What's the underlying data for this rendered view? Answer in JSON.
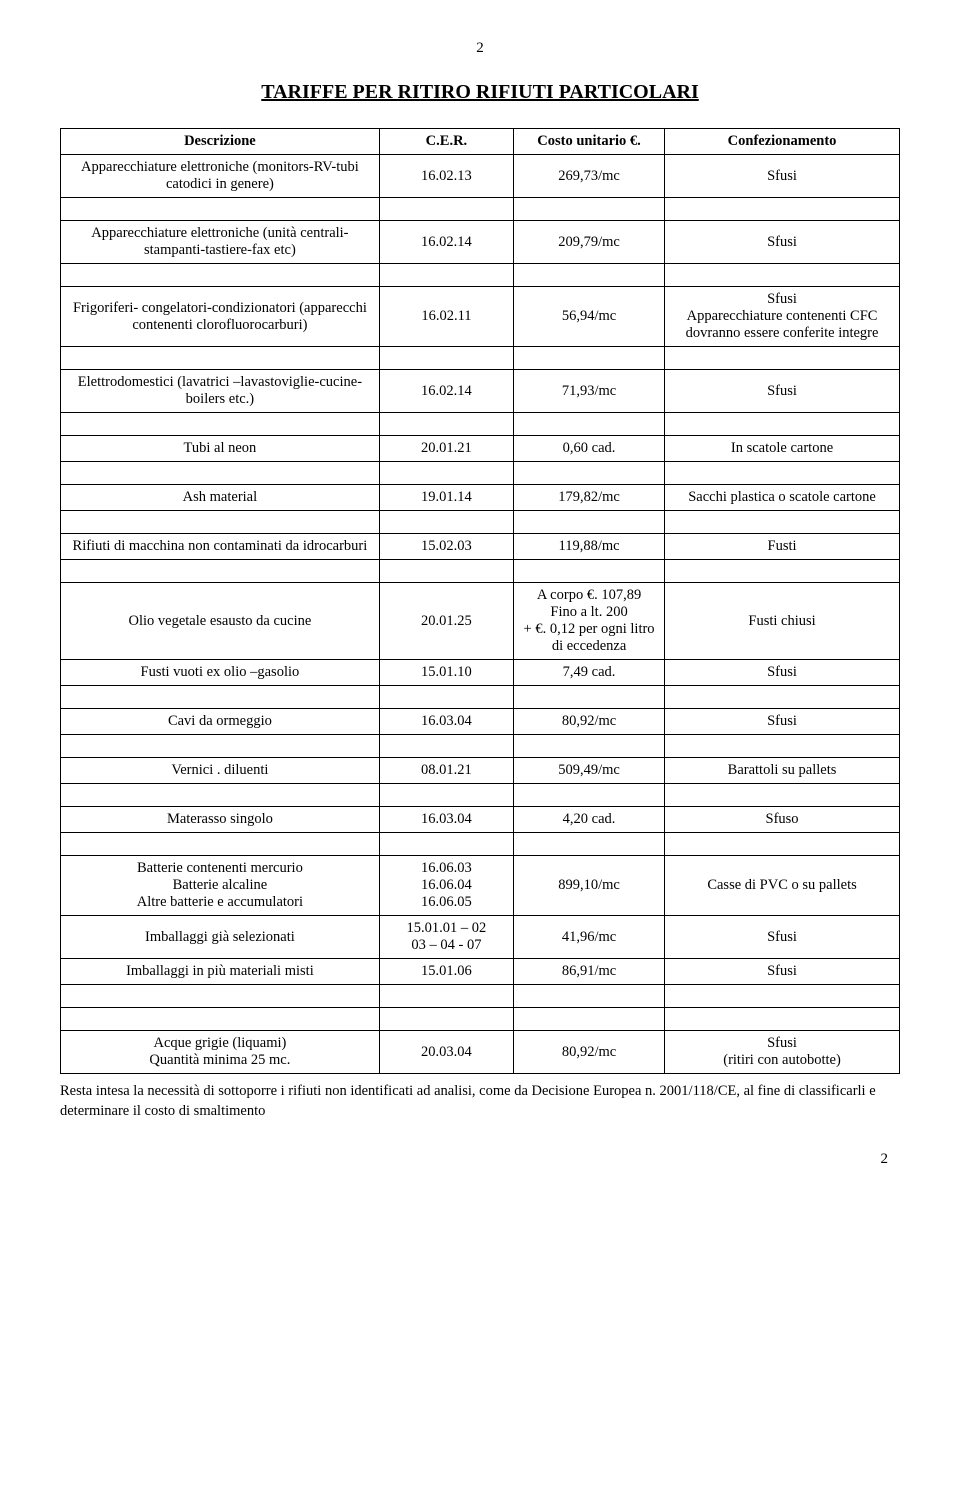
{
  "page": {
    "num_top": "2",
    "num_bottom": "2",
    "title": "TARIFFE PER RITIRO RIFIUTI PARTICOLARI"
  },
  "headers": {
    "desc": "Descrizione",
    "cer": "C.E.R.",
    "cost": "Costo unitario €.",
    "conf": "Confezionamento"
  },
  "rows": {
    "r1": {
      "desc": "Apparecchiature elettroniche (monitors-RV-tubi catodici in genere)",
      "cer": "16.02.13",
      "cost": "269,73/mc",
      "conf": "Sfusi"
    },
    "r2": {
      "desc": "Apparecchiature elettroniche (unità centrali-stampanti-tastiere-fax etc)",
      "cer": "16.02.14",
      "cost": "209,79/mc",
      "conf": "Sfusi"
    },
    "r3": {
      "desc": "Frigoriferi- congelatori-condizionatori (apparecchi contenenti clorofluorocarburi)",
      "cer": "16.02.11",
      "cost": "56,94/mc",
      "conf": "Sfusi\nApparecchiature contenenti CFC dovranno essere conferite integre"
    },
    "r4": {
      "desc": "Elettrodomestici (lavatrici –lavastoviglie-cucine-boilers etc.)",
      "cer": "16.02.14",
      "cost": "71,93/mc",
      "conf": "Sfusi"
    },
    "r5": {
      "desc": "Tubi al neon",
      "cer": "20.01.21",
      "cost": "0,60 cad.",
      "conf": "In scatole cartone"
    },
    "r6": {
      "desc": "Ash material",
      "cer": "19.01.14",
      "cost": "179,82/mc",
      "conf": "Sacchi plastica o scatole cartone"
    },
    "r7": {
      "desc": "Rifiuti di macchina non contaminati da idrocarburi",
      "cer": "15.02.03",
      "cost": "119,88/mc",
      "conf": "Fusti"
    },
    "r8": {
      "desc": "Olio vegetale esausto da cucine",
      "cer": "20.01.25",
      "cost": "A corpo €. 107,89\nFino a lt. 200\n+ €. 0,12 per ogni litro di eccedenza",
      "conf": "Fusti chiusi"
    },
    "r9": {
      "desc": "Fusti vuoti ex olio –gasolio",
      "cer": "15.01.10",
      "cost": "7,49 cad.",
      "conf": "Sfusi"
    },
    "r10": {
      "desc": "Cavi da ormeggio",
      "cer": "16.03.04",
      "cost": "80,92/mc",
      "conf": "Sfusi"
    },
    "r11": {
      "desc": "Vernici . diluenti",
      "cer": "08.01.21",
      "cost": "509,49/mc",
      "conf": "Barattoli su pallets"
    },
    "r12": {
      "desc": "Materasso singolo",
      "cer": "16.03.04",
      "cost": "4,20 cad.",
      "conf": "Sfuso"
    },
    "r13": {
      "desc": "Batterie contenenti mercurio\nBatterie alcaline\nAltre batterie e accumulatori",
      "cer": "16.06.03\n16.06.04\n16.06.05",
      "cost": "899,10/mc",
      "conf": "Casse di PVC o su pallets"
    },
    "r14": {
      "desc": "Imballaggi già selezionati",
      "cer": "15.01.01 – 02\n03 – 04 - 07",
      "cost": "41,96/mc",
      "conf": "Sfusi"
    },
    "r15": {
      "desc": "Imballaggi in più materiali misti",
      "cer": "15.01.06",
      "cost": "86,91/mc",
      "conf": "Sfusi"
    },
    "r16": {
      "desc": "Acque grigie (liquami)\nQuantità minima 25 mc.",
      "cer": "20.03.04",
      "cost": "80,92/mc",
      "conf": "Sfusi\n(ritiri con autobotte)"
    }
  },
  "footnote": "Resta intesa la necessità di sottoporre i rifiuti non identificati ad analisi, come da Decisione  Europea n. 2001/118/CE, al fine di classificarli e determinare il costo di smaltimento"
}
